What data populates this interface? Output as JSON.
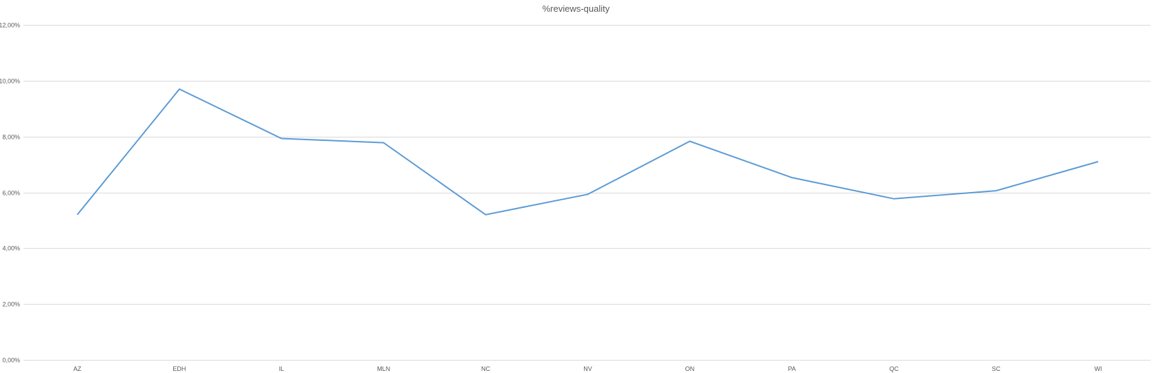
{
  "chart_data": {
    "type": "line",
    "title": "%reviews-quality",
    "xlabel": "",
    "ylabel": "",
    "categories": [
      "AZ",
      "EDH",
      "IL",
      "MLN",
      "NC",
      "NV",
      "ON",
      "PA",
      "QC",
      "SC",
      "WI"
    ],
    "series": [
      {
        "values": [
          0.052,
          0.097,
          0.0793,
          0.0778,
          0.052,
          0.0593,
          0.0783,
          0.0653,
          0.0577,
          0.0606,
          0.071
        ],
        "color": "#5b9bd5"
      }
    ],
    "ylim": [
      0,
      0.12
    ],
    "yticks": [
      0,
      0.02,
      0.04,
      0.06,
      0.08,
      0.1,
      0.12
    ],
    "ytick_labels": [
      "0,00%",
      "2,00%",
      "4,00%",
      "6,00%",
      "8,00%",
      "10,00%",
      "12,00%"
    ],
    "grid": true,
    "legend": "none",
    "colors": {
      "gridline": "#d9d9d9",
      "text": "#595959"
    }
  }
}
